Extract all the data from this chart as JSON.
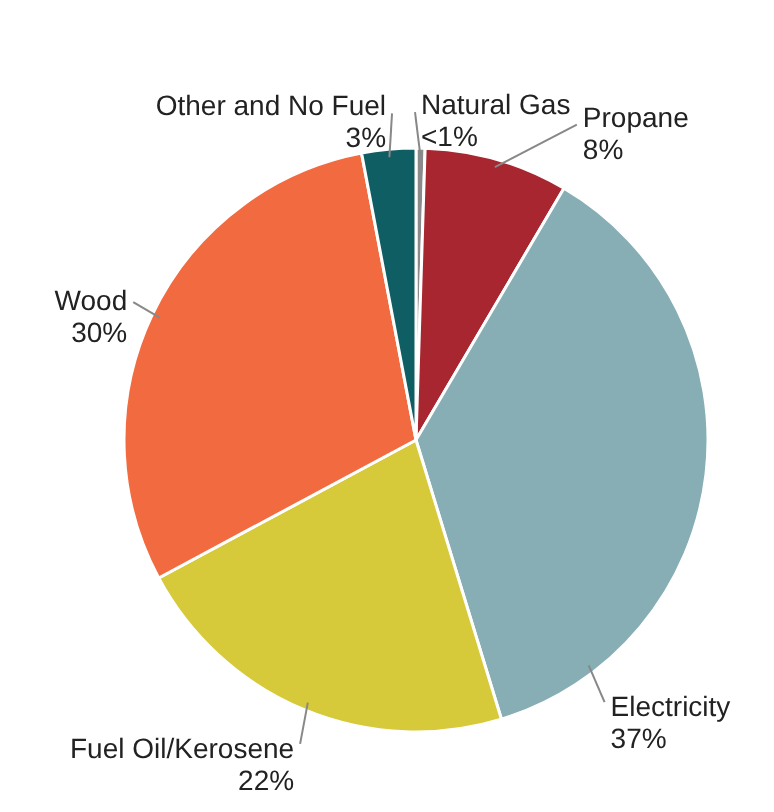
{
  "chart_data": {
    "type": "pie",
    "categories": [
      "Natural Gas",
      "Propane",
      "Electricity",
      "Fuel Oil/Kerosene",
      "Wood",
      "Other and No Fuel"
    ],
    "values": [
      0.5,
      8,
      37,
      22,
      30,
      3
    ],
    "value_labels": [
      "<1%",
      "8%",
      "37%",
      "22%",
      "30%",
      "3%"
    ],
    "colors": [
      "#8a8a8a",
      "#a8262f",
      "#86aeb4",
      "#d6c93a",
      "#f26a3f",
      "#0e5e63"
    ]
  }
}
